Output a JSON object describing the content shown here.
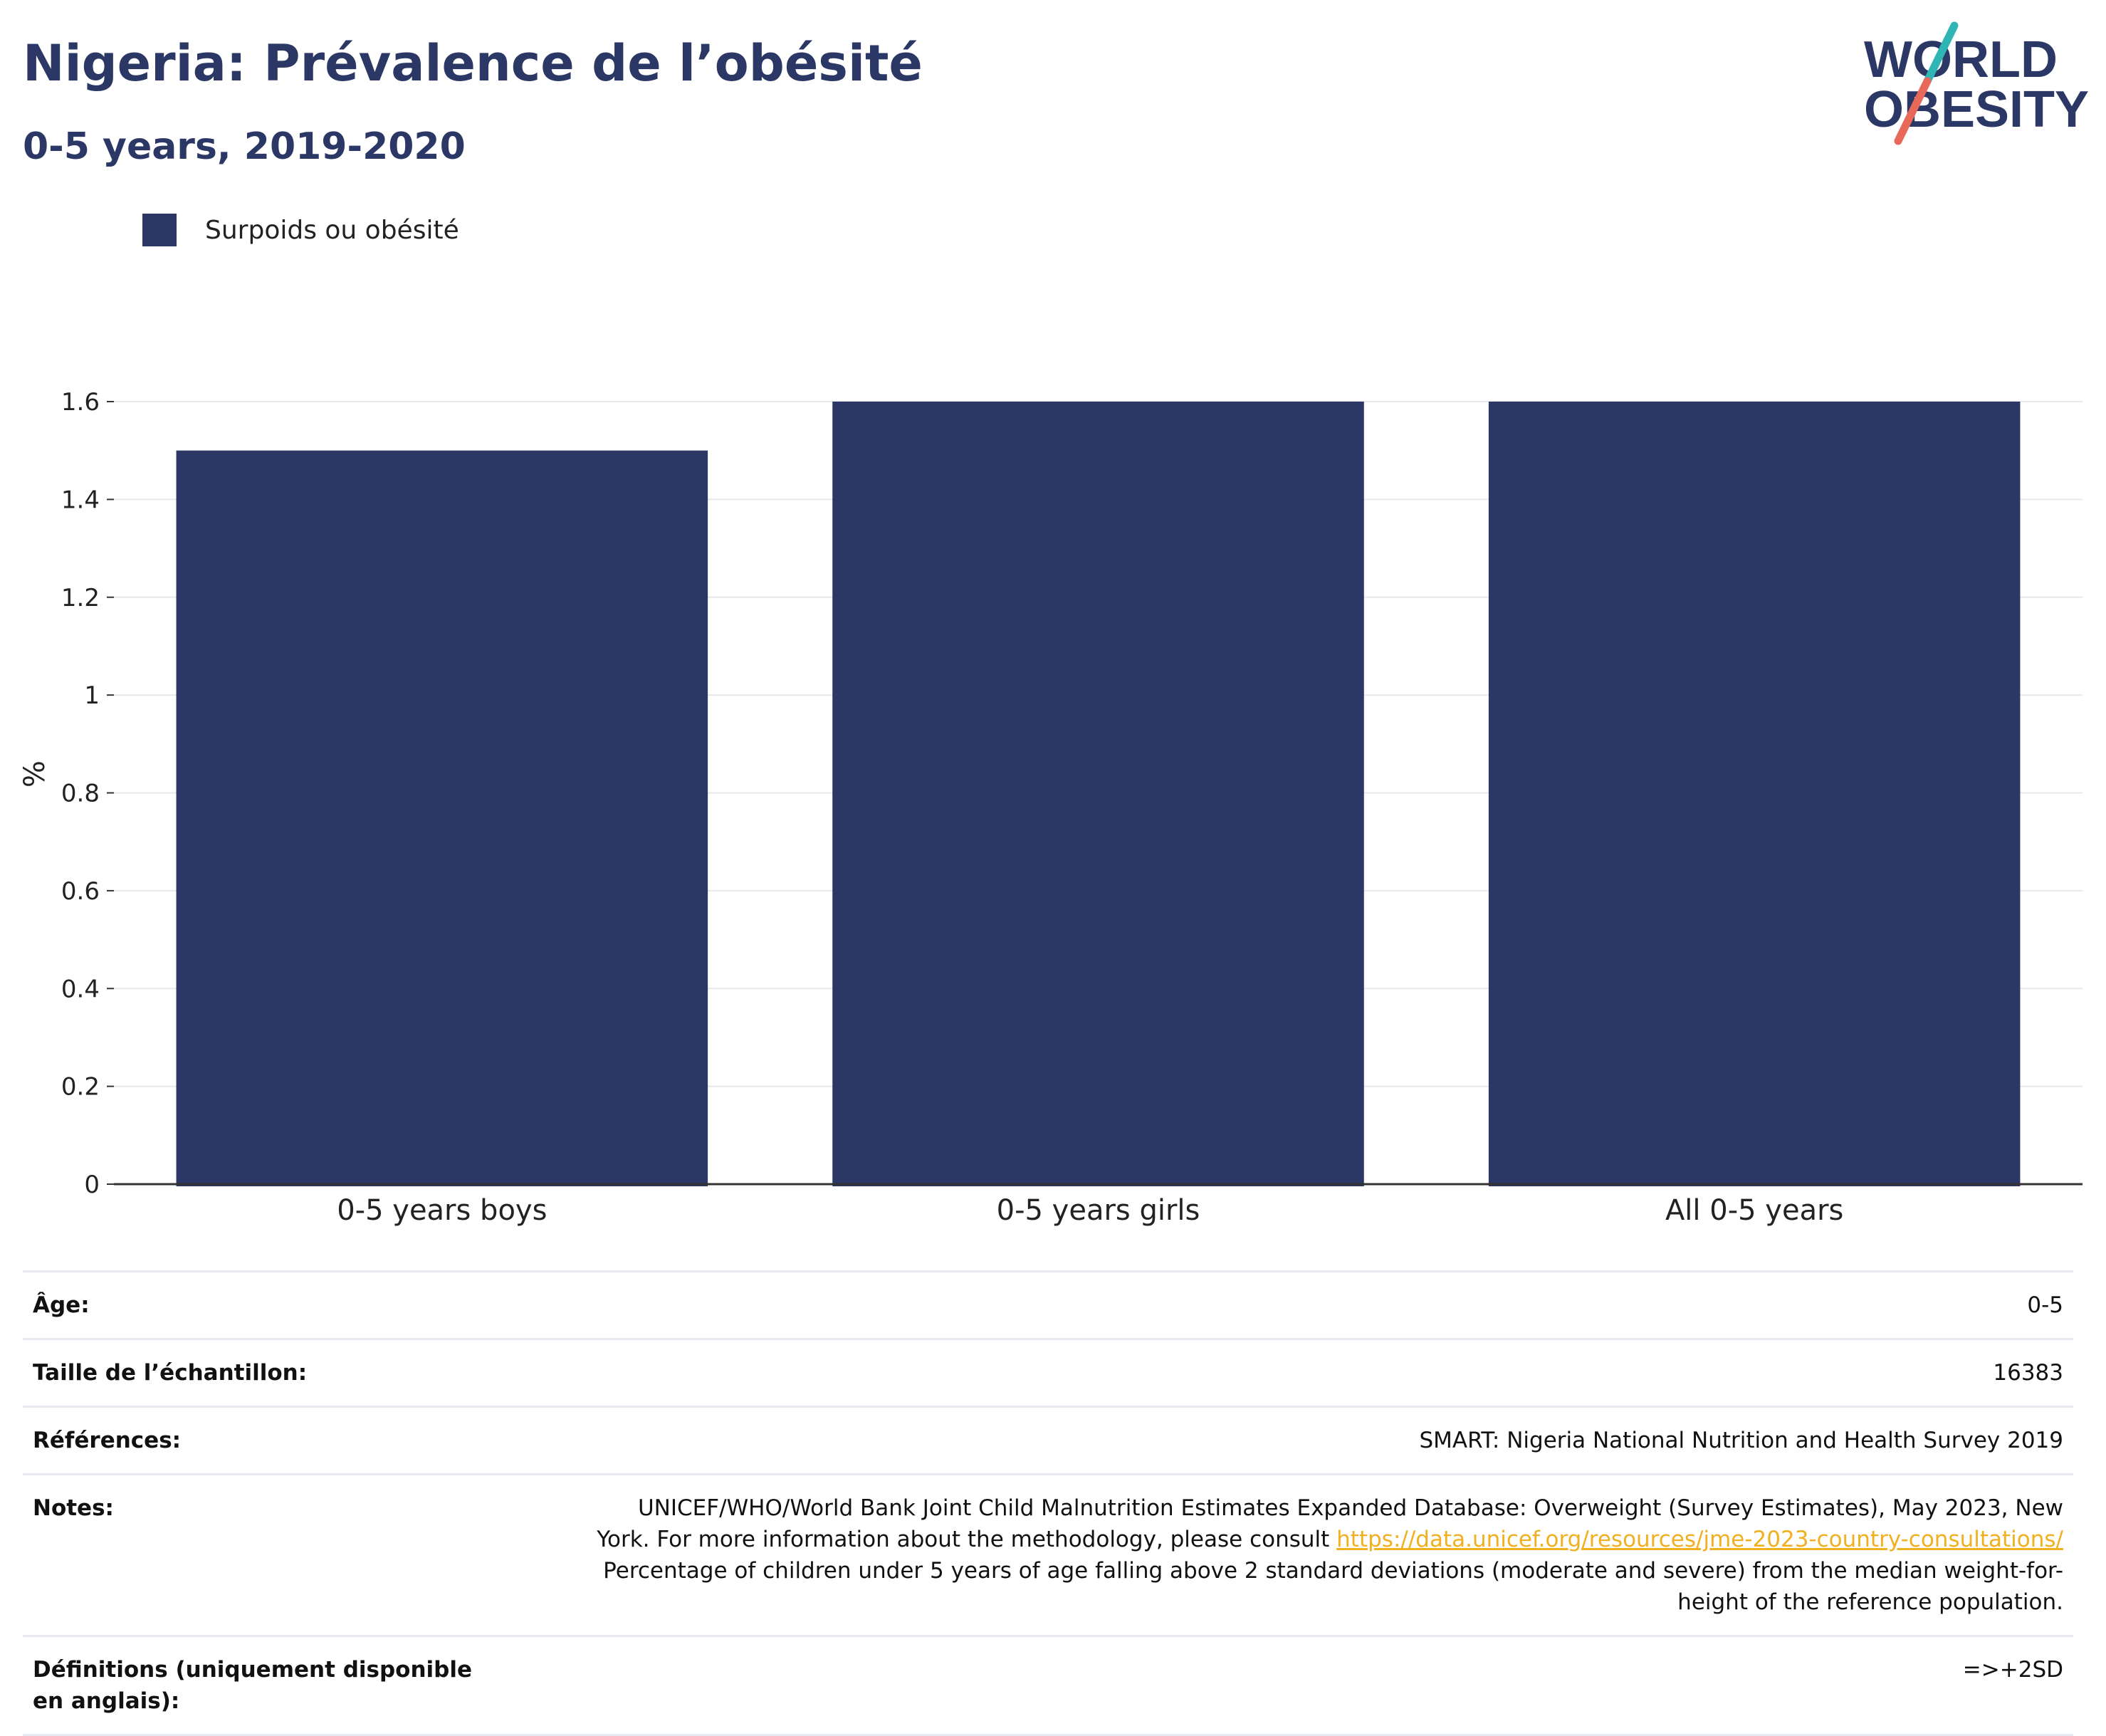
{
  "header": {
    "title": "Nigeria: Prévalence de l’obésité",
    "subtitle": "0-5 years, 2019-2020"
  },
  "logo": {
    "line1": "WORLD",
    "line2": "OBESITY"
  },
  "legend": {
    "label": "Surpoids ou obésité",
    "color": "#2b3764"
  },
  "chart_data": {
    "type": "bar",
    "title": "Nigeria: Prévalence de l’obésité",
    "subtitle": "0-5 years, 2019-2020",
    "categories": [
      "0-5 years boys",
      "0-5 years girls",
      "All 0-5 years"
    ],
    "series": [
      {
        "name": "Surpoids ou obésité",
        "values": [
          1.5,
          1.6,
          1.6
        ],
        "color": "#2b3764"
      }
    ],
    "xlabel": "",
    "ylabel": "%",
    "ylim": [
      0,
      1.6
    ],
    "yticks": [
      0,
      0.2,
      0.4,
      0.6,
      0.8,
      1,
      1.2,
      1.4,
      1.6
    ],
    "grid": true,
    "legend_position": "top-left"
  },
  "info": {
    "rows": [
      {
        "key": "Âge:",
        "value": "0-5"
      },
      {
        "key": "Taille de l’échantillon:",
        "value": "16383"
      },
      {
        "key": "Références:",
        "value": "SMART: Nigeria National Nutrition and Health Survey 2019"
      }
    ],
    "notes": {
      "key": "Notes:",
      "line1": "UNICEF/WHO/World Bank Joint Child Malnutrition Estimates Expanded Database: Overweight (Survey Estimates), May 2023, New",
      "line2_prefix": "York. For more information about the methodology, please consult ",
      "link": "https://data.unicef.org/resources/jme-2023-country-consultations/",
      "line3": "Percentage of children under 5 years of age falling above 2 standard deviations (moderate and severe) from the median weight-for-",
      "line4": "height of the reference population."
    },
    "definitions": {
      "key": "Définitions (uniquement disponible en anglais):",
      "value": "=>+2SD"
    }
  }
}
